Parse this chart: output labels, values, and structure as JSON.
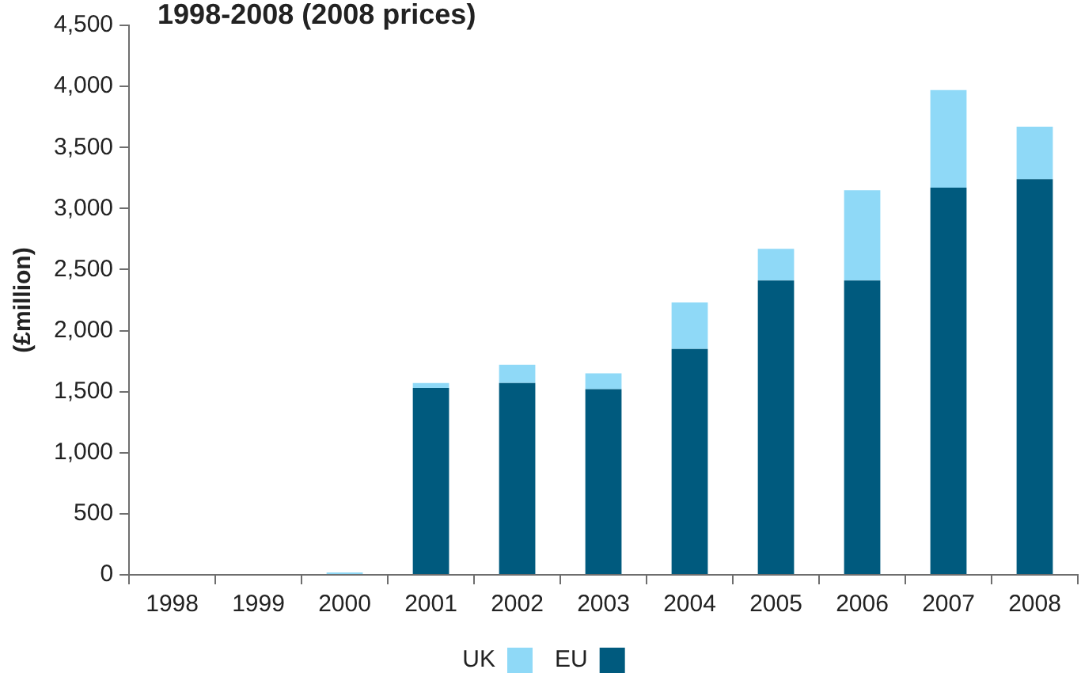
{
  "chart_data": {
    "type": "bar",
    "title": "1998-2008 (2008 prices)",
    "ylabel": "(£million)",
    "categories": [
      "1998",
      "1999",
      "2000",
      "2001",
      "2002",
      "2003",
      "2004",
      "2005",
      "2006",
      "2007",
      "2008"
    ],
    "series": [
      {
        "name": "EU",
        "color": "#005a7e",
        "values": [
          0,
          0,
          0,
          1530,
          1570,
          1520,
          1850,
          2410,
          2410,
          3170,
          3240
        ]
      },
      {
        "name": "UK",
        "color": "#8fd9f7",
        "values": [
          0,
          0,
          20,
          40,
          150,
          130,
          380,
          260,
          740,
          800,
          430
        ]
      }
    ],
    "stacked": true,
    "ylim": [
      0,
      4500
    ],
    "yticks": [
      0,
      500,
      {
        "value": 1000,
        "label": "1,000"
      },
      {
        "value": 1500,
        "label": "1,500"
      },
      {
        "value": 2000,
        "label": "2,000"
      },
      {
        "value": 2500,
        "label": "2,500"
      },
      {
        "value": 3000,
        "label": "3,000"
      },
      {
        "value": 3500,
        "label": "3,500"
      },
      {
        "value": 4000,
        "label": "4,000"
      },
      {
        "value": 4500,
        "label": "4,500"
      }
    ],
    "grid": false,
    "legend": "bottom"
  }
}
